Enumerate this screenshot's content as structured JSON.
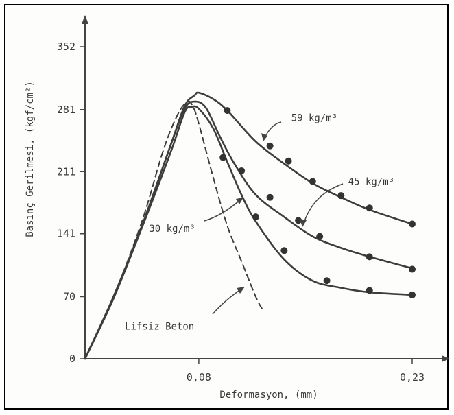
{
  "chart_data": {
    "type": "line",
    "xlabel": "Deformasyon, (mm)",
    "ylabel": "Basınç Gerilmesi, (kgf/cm²)",
    "x_ticks": [
      {
        "value": 0.08,
        "label": "0,08"
      },
      {
        "value": 0.23,
        "label": "0,23"
      }
    ],
    "y_ticks": [
      {
        "value": 0,
        "label": "0"
      },
      {
        "value": 70,
        "label": "70"
      },
      {
        "value": 141,
        "label": "141"
      },
      {
        "value": 211,
        "label": "211"
      },
      {
        "value": 281,
        "label": "281"
      },
      {
        "value": 352,
        "label": "352"
      }
    ],
    "xlim": [
      0,
      0.25
    ],
    "ylim": [
      0,
      380
    ],
    "grid": false,
    "series": [
      {
        "name": "59 kg/m³",
        "style": "solid-markers",
        "points": [
          [
            0,
            0
          ],
          [
            0.02,
            70
          ],
          [
            0.04,
            150
          ],
          [
            0.06,
            240
          ],
          [
            0.07,
            285
          ],
          [
            0.077,
            297
          ],
          [
            0.08,
            300
          ],
          [
            0.09,
            293
          ],
          [
            0.1,
            280
          ],
          [
            0.12,
            245
          ],
          [
            0.14,
            220
          ],
          [
            0.16,
            198
          ],
          [
            0.18,
            182
          ],
          [
            0.2,
            168
          ],
          [
            0.23,
            152
          ]
        ],
        "markers": [
          [
            0.1,
            280
          ],
          [
            0.13,
            240
          ],
          [
            0.143,
            223
          ],
          [
            0.16,
            200
          ],
          [
            0.18,
            184
          ],
          [
            0.2,
            170
          ],
          [
            0.23,
            152
          ]
        ]
      },
      {
        "name": "45 kg/m³",
        "style": "solid-markers",
        "points": [
          [
            0,
            0
          ],
          [
            0.02,
            70
          ],
          [
            0.04,
            150
          ],
          [
            0.06,
            240
          ],
          [
            0.07,
            282
          ],
          [
            0.077,
            290
          ],
          [
            0.085,
            283
          ],
          [
            0.095,
            250
          ],
          [
            0.105,
            220
          ],
          [
            0.12,
            185
          ],
          [
            0.14,
            160
          ],
          [
            0.16,
            138
          ],
          [
            0.18,
            125
          ],
          [
            0.2,
            115
          ],
          [
            0.23,
            102
          ]
        ],
        "markers": [
          [
            0.097,
            227
          ],
          [
            0.11,
            212
          ],
          [
            0.13,
            182
          ],
          [
            0.15,
            156
          ],
          [
            0.165,
            138
          ],
          [
            0.2,
            115
          ],
          [
            0.23,
            101
          ]
        ]
      },
      {
        "name": "30 kg/m³",
        "style": "solid-markers",
        "points": [
          [
            0,
            0
          ],
          [
            0.02,
            68
          ],
          [
            0.04,
            148
          ],
          [
            0.06,
            232
          ],
          [
            0.07,
            278
          ],
          [
            0.075,
            284
          ],
          [
            0.08,
            282
          ],
          [
            0.09,
            260
          ],
          [
            0.1,
            222
          ],
          [
            0.11,
            185
          ],
          [
            0.12,
            155
          ],
          [
            0.14,
            112
          ],
          [
            0.16,
            88
          ],
          [
            0.18,
            80
          ],
          [
            0.2,
            75
          ],
          [
            0.23,
            72
          ]
        ],
        "markers": [
          [
            0.12,
            160
          ],
          [
            0.14,
            122
          ],
          [
            0.17,
            88
          ],
          [
            0.2,
            77
          ],
          [
            0.23,
            72
          ]
        ]
      },
      {
        "name": "Lifsiz Beton",
        "style": "dashed",
        "points": [
          [
            0,
            0
          ],
          [
            0.02,
            70
          ],
          [
            0.04,
            155
          ],
          [
            0.055,
            235
          ],
          [
            0.065,
            275
          ],
          [
            0.072,
            290
          ],
          [
            0.076,
            284
          ],
          [
            0.08,
            265
          ],
          [
            0.09,
            205
          ],
          [
            0.1,
            150
          ],
          [
            0.11,
            110
          ],
          [
            0.12,
            70
          ],
          [
            0.125,
            55
          ]
        ]
      }
    ],
    "labels": [
      {
        "text": "59 kg/m³",
        "x": 0.145,
        "y": 268
      },
      {
        "text": "45 kg/m³",
        "x": 0.185,
        "y": 196
      },
      {
        "text": "30 kg/m³",
        "x": 0.045,
        "y": 143
      },
      {
        "text": "Lifsiz Beton",
        "x": 0.028,
        "y": 33
      }
    ]
  }
}
